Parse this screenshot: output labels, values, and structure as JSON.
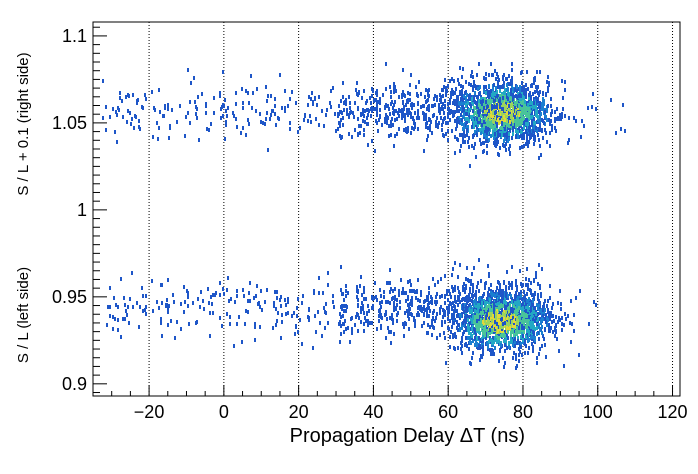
{
  "chart_data": {
    "type": "heatmap",
    "xlabel": "Propagation Delay ΔT (ns)",
    "ylabel_upper": "S / L + 0.1 (right side)",
    "ylabel_lower": "S / L  (left side)",
    "xlim": [
      -35,
      122
    ],
    "ylim": [
      0.893,
      1.108
    ],
    "x_ticks": [
      -20,
      0,
      20,
      40,
      60,
      80,
      100,
      120
    ],
    "x_tick_labels": [
      "−20",
      "0",
      "20",
      "40",
      "60",
      "80",
      "100",
      "120"
    ],
    "y_ticks": [
      0.9,
      0.95,
      1.0,
      1.05,
      1.1
    ],
    "y_tick_labels": [
      "0.9",
      "0.95",
      "1",
      "1.05",
      "1.1"
    ],
    "gridlines_x": "dotted vertical at major x ticks",
    "colormap": [
      "#1e56c8",
      "#1a7fd0",
      "#22a8c4",
      "#49c49a",
      "#9ad45e",
      "#e2d83a"
    ],
    "bands": [
      {
        "name": "upper",
        "y_center": 1.058,
        "x_start": -33,
        "x_end": 108,
        "peak_x": 74,
        "peak_y": 1.057,
        "peak_density": 0.85
      },
      {
        "name": "lower",
        "y_center": 0.945,
        "x_start": -33,
        "x_end": 100,
        "peak_x": 74,
        "peak_y": 0.937,
        "peak_density": 0.8
      }
    ]
  }
}
